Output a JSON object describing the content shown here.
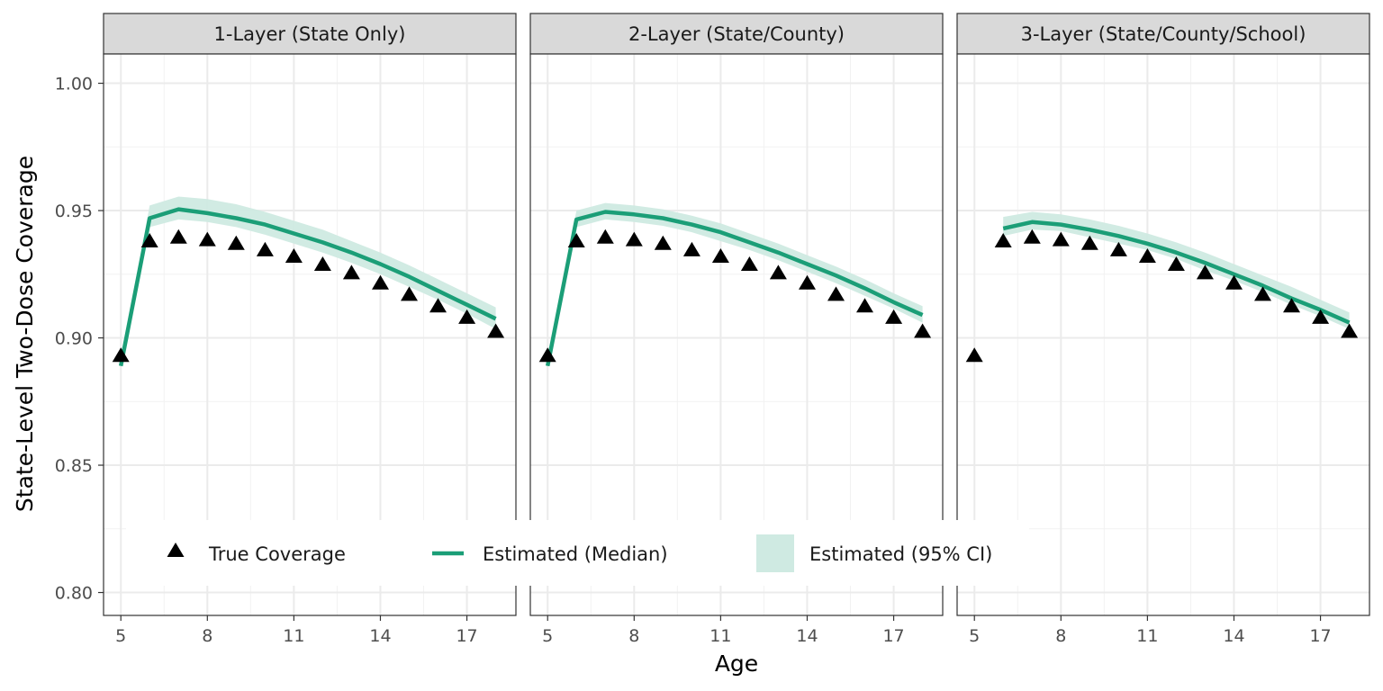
{
  "chart_data": {
    "type": "line",
    "xlabel": "Age",
    "ylabel": "State-Level Two-Dose Coverage",
    "xlim": [
      4.4,
      18.7
    ],
    "ylim": [
      0.791,
      1.0115
    ],
    "x_ticks": [
      5,
      8,
      11,
      14,
      17
    ],
    "y_ticks": [
      0.8,
      0.85,
      0.9,
      0.95,
      1.0
    ],
    "y_tick_labels": [
      "0.80",
      "0.85",
      "0.90",
      "0.95",
      "1.00"
    ],
    "grid": true,
    "colors": {
      "median": "#1b9e77",
      "ci": "#cfeae2",
      "true": "#000000",
      "strip_bg": "#d9d9d9"
    },
    "legend": {
      "position": "bottom-inside",
      "entries": [
        {
          "key": "true",
          "label": "True Coverage"
        },
        {
          "key": "median",
          "label": "Estimated (Median)"
        },
        {
          "key": "ci",
          "label": "Estimated (95% CI)"
        }
      ]
    },
    "true_coverage": {
      "x": [
        5,
        6,
        7,
        8,
        9,
        10,
        11,
        12,
        13,
        14,
        15,
        16,
        17,
        18
      ],
      "y": [
        0.893,
        0.938,
        0.9395,
        0.9385,
        0.937,
        0.9345,
        0.932,
        0.9288,
        0.9255,
        0.9215,
        0.917,
        0.9125,
        0.908,
        0.9025
      ]
    },
    "panels": [
      {
        "title": "1-Layer (State Only)",
        "median": {
          "x": [
            5,
            6,
            7,
            8,
            9,
            10,
            11,
            12,
            13,
            14,
            15,
            16,
            17,
            18
          ],
          "y": [
            0.889,
            0.947,
            0.9505,
            0.949,
            0.947,
            0.9445,
            0.941,
            0.9375,
            0.9335,
            0.929,
            0.924,
            0.9185,
            0.913,
            0.9075
          ]
        },
        "ci_lower": [
          0.8885,
          0.9435,
          0.9465,
          0.9455,
          0.9435,
          0.9405,
          0.937,
          0.9335,
          0.9295,
          0.925,
          0.92,
          0.915,
          0.9095,
          0.9035
        ],
        "ci_upper": [
          0.8895,
          0.952,
          0.9555,
          0.9545,
          0.9525,
          0.9495,
          0.946,
          0.9425,
          0.938,
          0.9335,
          0.9285,
          0.923,
          0.9175,
          0.912
        ]
      },
      {
        "title": "2-Layer (State/County)",
        "median": {
          "x": [
            5,
            6,
            7,
            8,
            9,
            10,
            11,
            12,
            13,
            14,
            15,
            16,
            17,
            18
          ],
          "y": [
            0.889,
            0.9465,
            0.9495,
            0.9485,
            0.947,
            0.9445,
            0.9415,
            0.9375,
            0.9335,
            0.929,
            0.9245,
            0.9195,
            0.914,
            0.909
          ]
        },
        "ci_lower": [
          0.8885,
          0.9435,
          0.9465,
          0.9455,
          0.944,
          0.9415,
          0.938,
          0.9345,
          0.9305,
          0.926,
          0.9215,
          0.9165,
          0.9115,
          0.906
        ],
        "ci_upper": [
          0.8895,
          0.95,
          0.953,
          0.952,
          0.9505,
          0.948,
          0.945,
          0.941,
          0.937,
          0.9325,
          0.928,
          0.923,
          0.9175,
          0.9125
        ]
      },
      {
        "title": "3-Layer (State/County/School)",
        "median": {
          "x": [
            6,
            7,
            8,
            9,
            10,
            11,
            12,
            13,
            14,
            15,
            16,
            17,
            18
          ],
          "y": [
            0.943,
            0.9455,
            0.9445,
            0.9425,
            0.94,
            0.937,
            0.9335,
            0.9295,
            0.925,
            0.9205,
            0.9155,
            0.911,
            0.906
          ]
        },
        "ci_lower": [
          0.94,
          0.9425,
          0.942,
          0.9395,
          0.937,
          0.9345,
          0.931,
          0.9265,
          0.9225,
          0.918,
          0.913,
          0.9085,
          0.9035
        ],
        "ci_upper": [
          0.9475,
          0.9495,
          0.9485,
          0.9465,
          0.944,
          0.941,
          0.9375,
          0.9335,
          0.929,
          0.9245,
          0.92,
          0.915,
          0.91
        ]
      }
    ]
  }
}
